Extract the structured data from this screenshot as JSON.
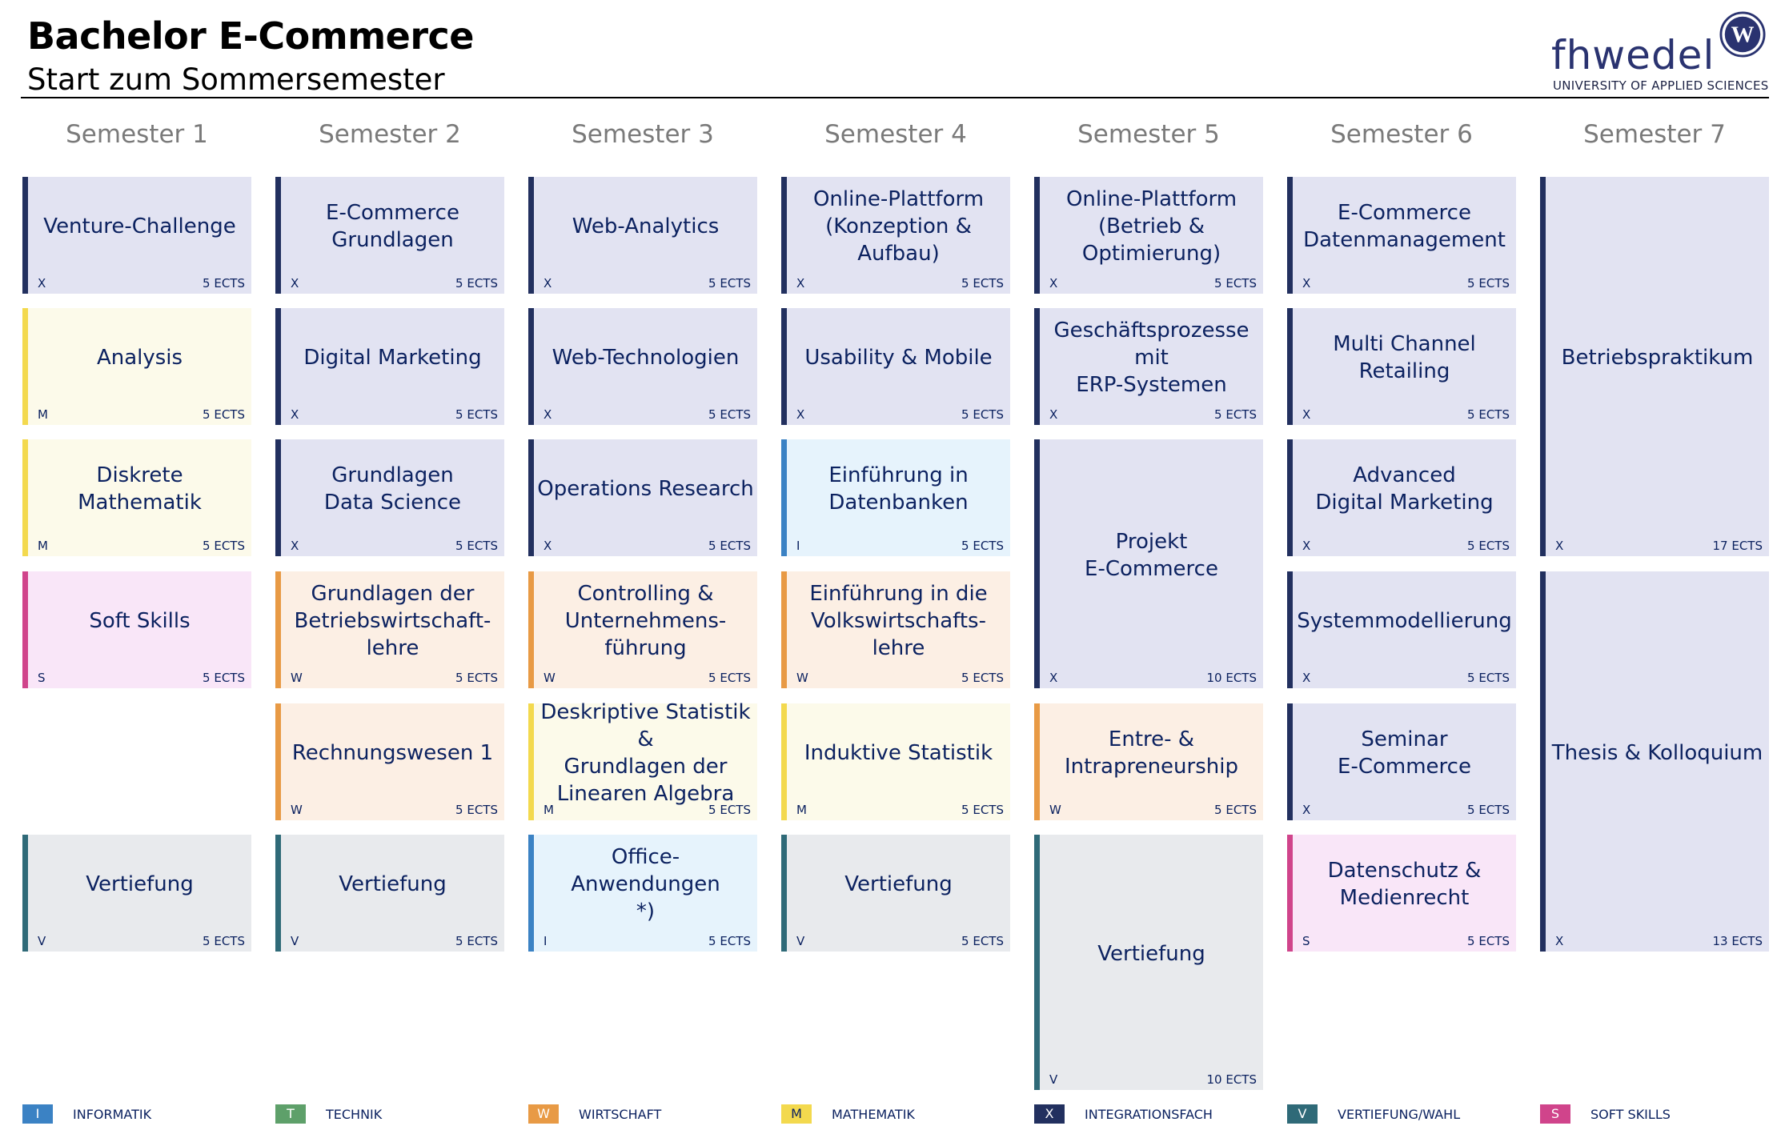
{
  "header": {
    "title": "Bachelor E-Commerce",
    "subtitle": "Start zum Sommersemester"
  },
  "logo": {
    "name": "fhwedel",
    "tagline": "UNIVERSITY OF APPLIED SCIENCES",
    "seal_letter": "W"
  },
  "semesters": [
    "Semester 1",
    "Semester 2",
    "Semester 3",
    "Semester 4",
    "Semester 5",
    "Semester 6",
    "Semester 7"
  ],
  "category_colors": {
    "I": {
      "border": "#3b82c4",
      "fill": "#e6f3fc"
    },
    "T": {
      "border": "#5ea06a",
      "fill": "#e9f3eb"
    },
    "W": {
      "border": "#e89a45",
      "fill": "#fcefe4"
    },
    "M": {
      "border": "#f3d94e",
      "fill": "#fcfaea"
    },
    "X": {
      "border": "#22305f",
      "fill": "#e2e3f2"
    },
    "V": {
      "border": "#2f6a78",
      "fill": "#e8eaed"
    },
    "S": {
      "border": "#d0448b",
      "fill": "#f9e6f8"
    }
  },
  "modules": [
    {
      "name": "Venture-Challenge",
      "code": "X",
      "ects": "5 ECTS"
    },
    {
      "name": "Analysis",
      "code": "M",
      "ects": "5 ECTS"
    },
    {
      "name": "Diskrete Mathematik",
      "code": "M",
      "ects": "5 ECTS"
    },
    {
      "name": "Soft Skills",
      "code": "S",
      "ects": "5 ECTS"
    },
    {
      "name": "Vertiefung",
      "code": "V",
      "ects": "5 ECTS"
    },
    {
      "name": "E-Commerce\nGrundlagen",
      "code": "X",
      "ects": "5 ECTS"
    },
    {
      "name": "Digital Marketing",
      "code": "X",
      "ects": "5 ECTS"
    },
    {
      "name": "Grundlagen\nData Science",
      "code": "X",
      "ects": "5 ECTS"
    },
    {
      "name": "Grundlagen der\nBetriebswirtschaft-\nlehre",
      "code": "W",
      "ects": "5 ECTS"
    },
    {
      "name": "Rechnungswesen 1",
      "code": "W",
      "ects": "5 ECTS"
    },
    {
      "name": "Vertiefung",
      "code": "V",
      "ects": "5 ECTS"
    },
    {
      "name": "Web-Analytics",
      "code": "X",
      "ects": "5 ECTS"
    },
    {
      "name": "Web-Technologien",
      "code": "X",
      "ects": "5 ECTS"
    },
    {
      "name": "Operations Research",
      "code": "X",
      "ects": "5 ECTS"
    },
    {
      "name": "Controlling &\nUnternehmens-\nführung",
      "code": "W",
      "ects": "5 ECTS"
    },
    {
      "name": "Deskriptive Statistik &\nGrundlagen der\nLinearen Algebra",
      "code": "M",
      "ects": "5 ECTS"
    },
    {
      "name": "Office-Anwendungen\n*)",
      "code": "I",
      "ects": "5 ECTS"
    },
    {
      "name": "Online-Plattform\n(Konzeption & Aufbau)",
      "code": "X",
      "ects": "5 ECTS"
    },
    {
      "name": "Usability & Mobile",
      "code": "X",
      "ects": "5 ECTS"
    },
    {
      "name": "Einführung in\nDatenbanken",
      "code": "I",
      "ects": "5 ECTS"
    },
    {
      "name": "Einführung in die\nVolkswirtschafts-\nlehre",
      "code": "W",
      "ects": "5 ECTS"
    },
    {
      "name": "Induktive Statistik",
      "code": "M",
      "ects": "5 ECTS"
    },
    {
      "name": "Vertiefung",
      "code": "V",
      "ects": "5 ECTS"
    },
    {
      "name": "Online-Plattform\n(Betrieb &\nOptimierung)",
      "code": "X",
      "ects": "5 ECTS"
    },
    {
      "name": "Geschäftsprozesse mit\nERP-Systemen",
      "code": "X",
      "ects": "5 ECTS"
    },
    {
      "name": "Projekt\nE-Commerce",
      "code": "X",
      "ects": "10 ECTS"
    },
    {
      "name": "Entre- &\nIntrapreneurship",
      "code": "W",
      "ects": "5 ECTS"
    },
    {
      "name": "Vertiefung",
      "code": "V",
      "ects": "10 ECTS"
    },
    {
      "name": "E-Commerce\nDatenmanagement",
      "code": "X",
      "ects": "5 ECTS"
    },
    {
      "name": "Multi Channel Retailing",
      "code": "X",
      "ects": "5 ECTS"
    },
    {
      "name": "Advanced\nDigital Marketing",
      "code": "X",
      "ects": "5 ECTS"
    },
    {
      "name": "Systemmodellierung",
      "code": "X",
      "ects": "5 ECTS"
    },
    {
      "name": "Seminar\nE-Commerce",
      "code": "X",
      "ects": "5 ECTS"
    },
    {
      "name": "Datenschutz &\nMedienrecht",
      "code": "S",
      "ects": "5 ECTS"
    },
    {
      "name": "Betriebspraktikum",
      "code": "X",
      "ects": "17 ECTS"
    },
    {
      "name": "Thesis & Kolloquium",
      "code": "X",
      "ects": "13 ECTS"
    }
  ],
  "legend": [
    {
      "letter": "I",
      "label": "INFORMATIK"
    },
    {
      "letter": "T",
      "label": "TECHNIK"
    },
    {
      "letter": "W",
      "label": "WIRTSCHAFT"
    },
    {
      "letter": "M",
      "label": "MATHEMATIK"
    },
    {
      "letter": "X",
      "label": "INTEGRATIONSFACH"
    },
    {
      "letter": "V",
      "label": "VERTIEFUNG/WAHL"
    },
    {
      "letter": "S",
      "label": "SOFT SKILLS"
    }
  ]
}
